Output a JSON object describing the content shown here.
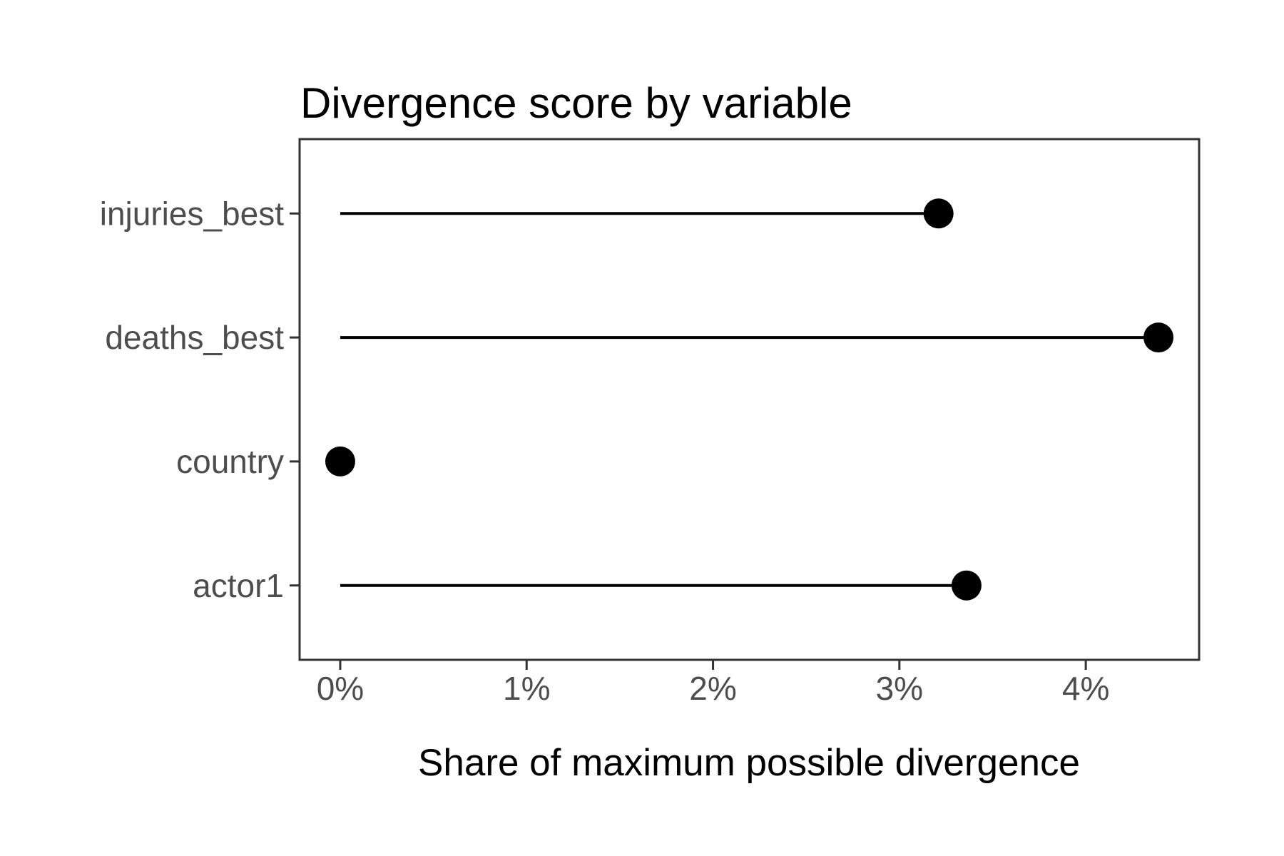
{
  "chart_data": {
    "type": "bar",
    "subtype": "lollipop-horizontal",
    "title": "Divergence score by variable",
    "xlabel": "Share of maximum possible divergence",
    "ylabel": "",
    "categories": [
      "injuries_best",
      "deaths_best",
      "country",
      "actor1"
    ],
    "values": [
      3.21,
      4.39,
      0,
      3.36
    ],
    "value_unit": "percent",
    "x_ticks": [
      "0%",
      "1%",
      "2%",
      "3%",
      "4%"
    ],
    "x_tick_values": [
      0,
      1,
      2,
      3,
      4
    ],
    "xlim": [
      -0.218,
      4.608
    ],
    "grid": false,
    "legend": false,
    "colors": {
      "point": "#000000",
      "stem": "#000000",
      "panel_border": "#333333",
      "tick_mark": "#333333",
      "tick_label": "#4D4D4D",
      "title": "#000000",
      "background": "#FFFFFF"
    }
  }
}
